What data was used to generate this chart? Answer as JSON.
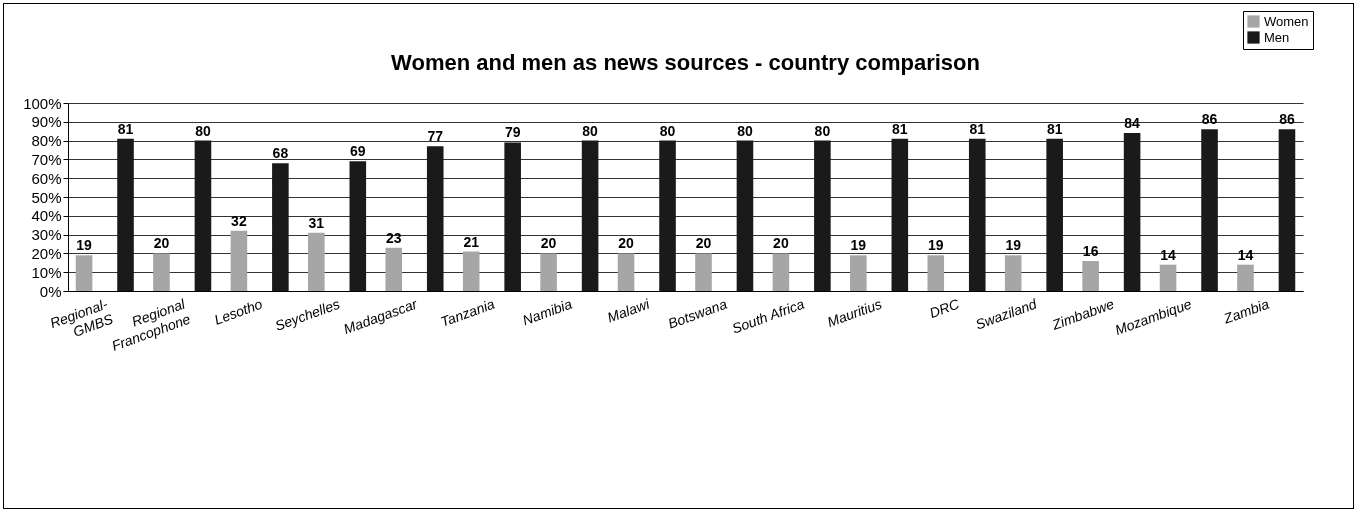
{
  "chart_data": {
    "type": "bar",
    "title": "Women and men as news sources - country comparison",
    "categories": [
      "Regional-\nGMBS",
      "Regional\nFrancophone",
      "Lesotho",
      "Seychelles",
      "Madagascar",
      "Tanzania",
      "Namibia",
      "Malawi",
      "Botswana",
      "South Africa",
      "Mauritius",
      "DRC",
      "Swaziland",
      "Zimbabwe",
      "Mozambique",
      "Zambia"
    ],
    "series": [
      {
        "name": "Women",
        "color": "#a6a6a6",
        "values": [
          19,
          20,
          32,
          31,
          23,
          21,
          20,
          20,
          20,
          20,
          19,
          19,
          19,
          16,
          14,
          14
        ]
      },
      {
        "name": "Men",
        "color": "#1a1a1a",
        "values": [
          81,
          80,
          68,
          69,
          77,
          79,
          80,
          80,
          80,
          80,
          81,
          81,
          81,
          84,
          86,
          86
        ]
      }
    ],
    "ylim": [
      0,
      100
    ],
    "yticks": [
      {
        "value": 0,
        "label": "0%"
      },
      {
        "value": 10,
        "label": "10%"
      },
      {
        "value": 20,
        "label": "20%"
      },
      {
        "value": 30,
        "label": "30%"
      },
      {
        "value": 40,
        "label": "40%"
      },
      {
        "value": 50,
        "label": "50%"
      },
      {
        "value": 60,
        "label": "60%"
      },
      {
        "value": 70,
        "label": "70%"
      },
      {
        "value": 80,
        "label": "80%"
      },
      {
        "value": 90,
        "label": "90%"
      },
      {
        "value": 100,
        "label": "100%"
      }
    ],
    "grid": "y",
    "legend": "top right",
    "data_labels": true
  }
}
